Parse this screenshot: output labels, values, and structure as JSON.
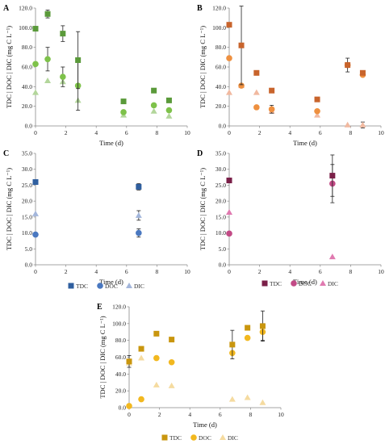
{
  "colors": {
    "A": {
      "TDC": "#5a9a3a",
      "DOC": "#7ec24a",
      "DIC": "#b3d69b"
    },
    "B": {
      "TDC": "#c8642c",
      "DOC": "#ee9040",
      "DIC": "#f1b9a0"
    },
    "C": {
      "TDC": "#2f5f9f",
      "DOC": "#4a78c0",
      "DIC": "#a3b6db"
    },
    "D": {
      "TDC": "#7a1f48",
      "DOC": "#c24a86",
      "DIC": "#e07ab0"
    },
    "E": {
      "TDC": "#c9960e",
      "DOC": "#f2b81f",
      "DIC": "#f5dba0"
    }
  },
  "chart_data": [
    {
      "panel": "A",
      "type": "scatter",
      "xlabel": "Time (d)",
      "ylabel": "TDC | DOC | DIC (mg C L⁻¹)",
      "xlim": [
        0,
        10
      ],
      "ylim": [
        0,
        120
      ],
      "xticks": [
        "0",
        "2",
        "4",
        "6",
        "8",
        "10"
      ],
      "yticks": [
        "0.0",
        "20.0",
        "40.0",
        "60.0",
        "80.0",
        "100.0",
        "120.0"
      ],
      "series": [
        {
          "name": "TDC",
          "marker": "square",
          "x": [
            0,
            0.8,
            1.8,
            2.8,
            5.8,
            7.8,
            8.8
          ],
          "y": [
            99,
            114,
            94,
            67,
            25,
            36,
            26
          ],
          "err": [
            0,
            4,
            8,
            29,
            0,
            0,
            0
          ]
        },
        {
          "name": "DOC",
          "marker": "circle",
          "x": [
            0,
            0.8,
            1.8,
            2.8,
            5.8,
            7.8,
            8.8
          ],
          "y": [
            63,
            68,
            50,
            41,
            14,
            21,
            16
          ],
          "err": [
            0,
            12,
            10,
            25,
            0,
            0,
            0
          ]
        },
        {
          "name": "DIC",
          "marker": "triangle",
          "x": [
            0,
            0.8,
            1.8,
            2.8,
            5.8,
            7.8,
            8.8
          ],
          "y": [
            34,
            46,
            45,
            26,
            11,
            15,
            10
          ],
          "err": [
            0,
            0,
            0,
            0,
            0,
            0,
            0
          ]
        }
      ]
    },
    {
      "panel": "B",
      "type": "scatter",
      "xlabel": "Time (d)",
      "ylabel": "TDC | DOC | DIC (mg C L⁻¹)",
      "xlim": [
        0,
        10
      ],
      "ylim": [
        0,
        120
      ],
      "xticks": [
        "0",
        "2",
        "4",
        "6",
        "8",
        "10"
      ],
      "yticks": [
        "0.0",
        "20.0",
        "40.0",
        "60.0",
        "80.0",
        "100.0",
        "120.0"
      ],
      "series": [
        {
          "name": "TDC",
          "marker": "square",
          "x": [
            0,
            0.8,
            1.8,
            2.8,
            5.8,
            7.8,
            8.8
          ],
          "y": [
            103,
            82,
            54,
            36,
            27,
            62,
            54
          ],
          "err": [
            0,
            40,
            0,
            0,
            0,
            7,
            0
          ]
        },
        {
          "name": "DOC",
          "marker": "circle",
          "x": [
            0,
            0.8,
            1.8,
            2.8,
            5.8,
            7.8,
            8.8
          ],
          "y": [
            69,
            41,
            19,
            17,
            15,
            62,
            52
          ],
          "err": [
            0,
            0,
            0,
            4,
            0,
            0,
            0
          ]
        },
        {
          "name": "DIC",
          "marker": "triangle",
          "x": [
            0,
            0.8,
            1.8,
            2.8,
            5.8,
            7.8,
            8.8
          ],
          "y": [
            34,
            41,
            34,
            15,
            11,
            1,
            1
          ],
          "err": [
            0,
            0,
            0,
            0,
            0,
            0,
            3
          ]
        }
      ]
    },
    {
      "panel": "C",
      "type": "scatter",
      "xlabel": "Time (d)",
      "ylabel": "TDC | DOC | DIC (mg C L⁻¹)",
      "xlim": [
        0,
        10
      ],
      "ylim": [
        0,
        35
      ],
      "xticks": [
        "0",
        "2",
        "4",
        "6",
        "8",
        "10"
      ],
      "yticks": [
        "0.0",
        "5.0",
        "10.0",
        "15.0",
        "20.0",
        "25.0",
        "30.0",
        "35.0"
      ],
      "legend": [
        "TDC",
        "DOC",
        "DIC"
      ],
      "legend_position": "bottom",
      "series": [
        {
          "name": "TDC",
          "marker": "square",
          "x": [
            0,
            6.8
          ],
          "y": [
            26,
            24.5
          ],
          "err": [
            0,
            1
          ]
        },
        {
          "name": "DOC",
          "marker": "circle",
          "x": [
            0,
            6.8
          ],
          "y": [
            9.5,
            10
          ],
          "err": [
            0,
            1.3
          ]
        },
        {
          "name": "DIC",
          "marker": "triangle",
          "x": [
            0,
            6.8
          ],
          "y": [
            16,
            15.5
          ],
          "err": [
            0,
            1.5
          ]
        }
      ]
    },
    {
      "panel": "D",
      "type": "scatter",
      "xlabel": "Time (d)",
      "ylabel": "TDC | DOC | DIC (mg C L⁻¹)",
      "xlim": [
        0,
        10
      ],
      "ylim": [
        0,
        35
      ],
      "xticks": [
        "0",
        "2",
        "4",
        "6",
        "8",
        "10"
      ],
      "yticks": [
        "0.0",
        "5.0",
        "10.0",
        "15.0",
        "20.0",
        "25.0",
        "30.0",
        "35.0"
      ],
      "legend": [
        "TDC",
        "DOC",
        "DIC"
      ],
      "legend_position": "bottom",
      "series": [
        {
          "name": "TDC",
          "marker": "square",
          "x": [
            0,
            6.8
          ],
          "y": [
            26.5,
            28
          ],
          "err": [
            0,
            6.5
          ]
        },
        {
          "name": "DOC",
          "marker": "circle",
          "x": [
            0,
            6.8
          ],
          "y": [
            9.8,
            25.5
          ],
          "err": [
            0,
            6
          ]
        },
        {
          "name": "DIC",
          "marker": "triangle",
          "x": [
            0,
            6.8
          ],
          "y": [
            16.5,
            2.5
          ],
          "err": [
            0,
            0
          ]
        }
      ]
    },
    {
      "panel": "E",
      "type": "scatter",
      "xlabel": "Time (d)",
      "ylabel": "TDC | DOC | DIC (mg C L⁻¹)",
      "xlim": [
        0,
        10
      ],
      "ylim": [
        0,
        120
      ],
      "xticks": [
        "0",
        "2",
        "4",
        "6",
        "8",
        "10"
      ],
      "yticks": [
        "0.0",
        "20.0",
        "40.0",
        "60.0",
        "80.0",
        "100.0",
        "120.0"
      ],
      "legend": [
        "TDC",
        "DOC",
        "DIC"
      ],
      "legend_position": "bottom",
      "series": [
        {
          "name": "TDC",
          "marker": "square",
          "x": [
            0,
            0.8,
            1.8,
            2.8,
            6.8,
            7.8,
            8.8
          ],
          "y": [
            55,
            70,
            88,
            81,
            75,
            95,
            97
          ],
          "err": [
            7,
            0,
            0,
            0,
            17,
            0,
            18
          ]
        },
        {
          "name": "DOC",
          "marker": "circle",
          "x": [
            0,
            0.8,
            1.8,
            2.8,
            6.8,
            7.8,
            8.8
          ],
          "y": [
            2,
            10,
            59,
            54,
            65,
            83,
            90
          ],
          "err": [
            0,
            0,
            0,
            0,
            0,
            0,
            10
          ]
        },
        {
          "name": "DIC",
          "marker": "triangle",
          "x": [
            0,
            0.8,
            1.8,
            2.8,
            6.8,
            7.8,
            8.8
          ],
          "y": [
            53,
            59,
            27,
            26,
            10,
            12,
            6
          ],
          "err": [
            0,
            0,
            0,
            0,
            0,
            0,
            0
          ]
        }
      ]
    }
  ]
}
